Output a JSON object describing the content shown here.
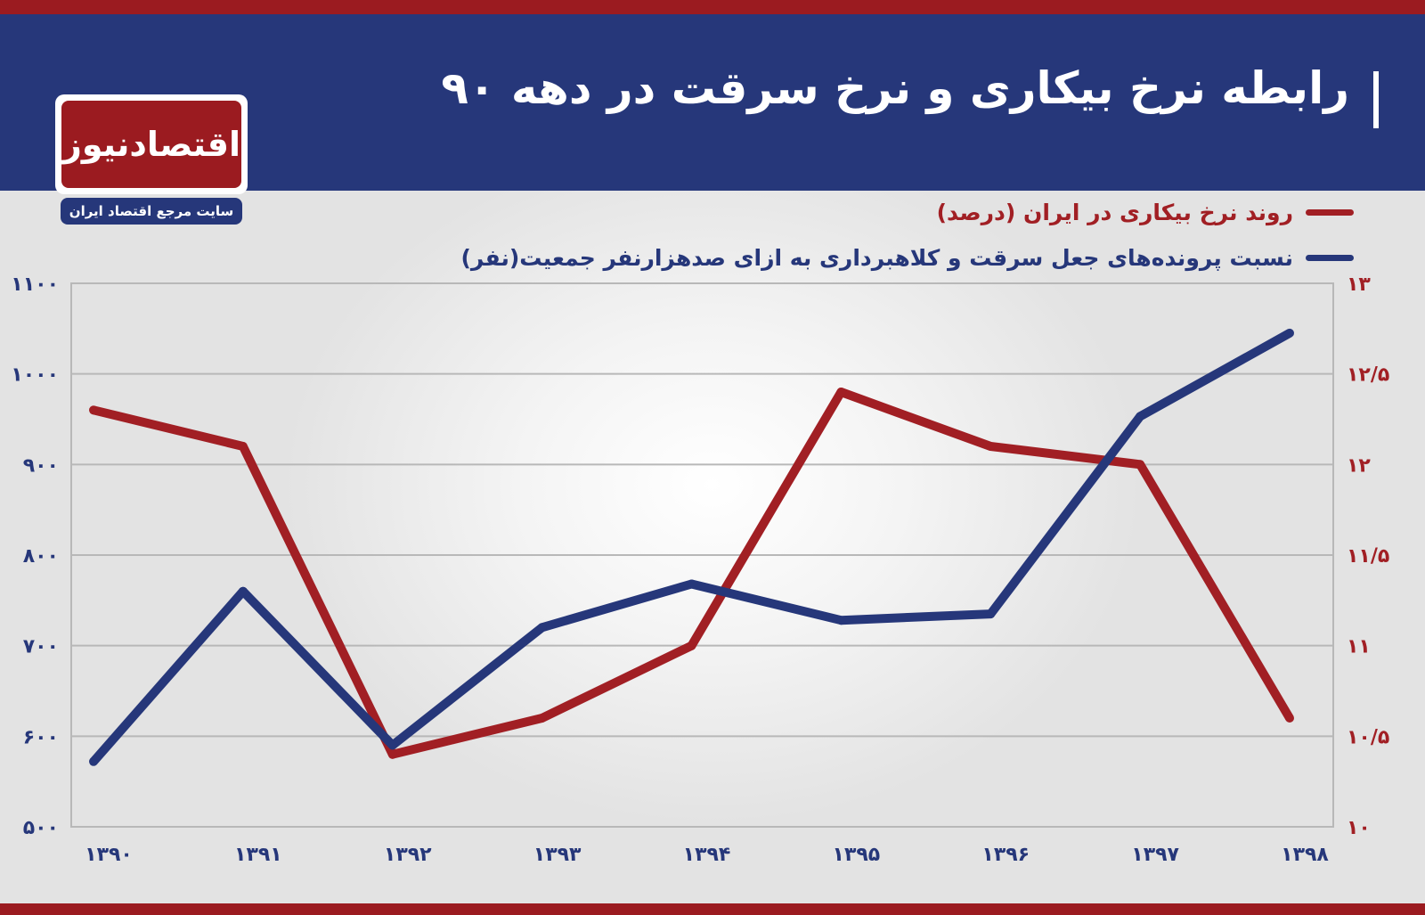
{
  "title": "رابطه نرخ بیکاری و نرخ سرقت در دهه ۹۰",
  "logo": {
    "name": "اقتصادنیوز",
    "tagline": "سایت مرجع اقتصاد ایران"
  },
  "colors": {
    "header": "#26377a",
    "accent_red": "#9b1b20",
    "series_red": "#a11f24",
    "series_blue": "#26377a",
    "grid": "#b8b8b8"
  },
  "chart_data": {
    "type": "line",
    "x": [
      "۱۳۹۰",
      "۱۳۹۱",
      "۱۳۹۲",
      "۱۳۹۳",
      "۱۳۹۴",
      "۱۳۹۵",
      "۱۳۹۶",
      "۱۳۹۷",
      "۱۳۹۸"
    ],
    "series": [
      {
        "name": "روند نرخ بیکاری در ایران (درصد)",
        "axis": "right",
        "color": "#a11f24",
        "values": [
          12.3,
          12.1,
          10.4,
          10.6,
          11.0,
          12.4,
          12.1,
          12.0,
          10.6
        ]
      },
      {
        "name": "نسبت پرونده‌های جعل سرقت و کلاهبرداری به ازای صدهزارنفر جمعیت(نفر)",
        "axis": "left",
        "color": "#26377a",
        "values": [
          572,
          760,
          590,
          720,
          768,
          728,
          735,
          953,
          1045
        ]
      }
    ],
    "left_axis": {
      "ylim": [
        500,
        1100
      ],
      "ticks": [
        "۵۰۰",
        "۶۰۰",
        "۷۰۰",
        "۸۰۰",
        "۹۰۰",
        "۱۰۰۰",
        "۱۱۰۰"
      ]
    },
    "right_axis": {
      "ylim": [
        10,
        13
      ],
      "ticks": [
        "۱۰",
        "۱۰/۵",
        "۱۱",
        "۱۱/۵",
        "۱۲",
        "۱۲/۵",
        "۱۳"
      ]
    },
    "grid": true,
    "legend_position": "top-right"
  }
}
